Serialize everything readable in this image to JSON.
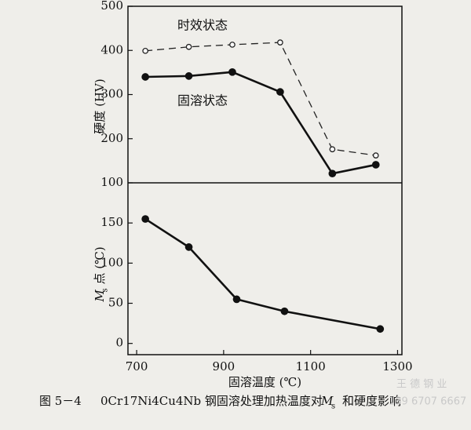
{
  "chart_data": [
    {
      "type": "line",
      "ylabel": "硬度 (HV)",
      "x": [
        720,
        820,
        920,
        1030,
        1150,
        1250
      ],
      "xlim": [
        680,
        1310
      ],
      "ylim": [
        100,
        500
      ],
      "yticks": [
        100,
        200,
        300,
        400,
        500
      ],
      "series": [
        {
          "name": "时效状态",
          "color": "#222222",
          "dashed": true,
          "marker_filled": false,
          "values": [
            399,
            408,
            413,
            418,
            176,
            162
          ]
        },
        {
          "name": "固溶状态",
          "color": "#111111",
          "dashed": false,
          "marker_filled": true,
          "values": [
            340,
            342,
            351,
            306,
            121,
            141
          ]
        }
      ]
    },
    {
      "type": "line",
      "ylabel_symbol": "M",
      "ylabel_sub": "s",
      "ylabel": "点 (℃)",
      "xlabel": "固溶温度 (℃)",
      "x": [
        720,
        820,
        930,
        1040,
        1260
      ],
      "xlim": [
        680,
        1310
      ],
      "xticks": [
        700,
        900,
        1100,
        1300
      ],
      "ylim": [
        -14,
        200
      ],
      "yticks": [
        0,
        50,
        100,
        150
      ],
      "color": "#111111",
      "values": [
        155,
        120,
        55,
        40,
        18
      ]
    }
  ],
  "caption": {
    "figure": "图 5－4",
    "text": "0Cr17Ni4Cu4Nb 钢固溶处理加热温度对",
    "symbol": "M",
    "sub": "s",
    "suffix": "和硬度影响"
  },
  "watermark": {
    "name": "王 德 钢 业",
    "phone": "139 6707 6667"
  }
}
